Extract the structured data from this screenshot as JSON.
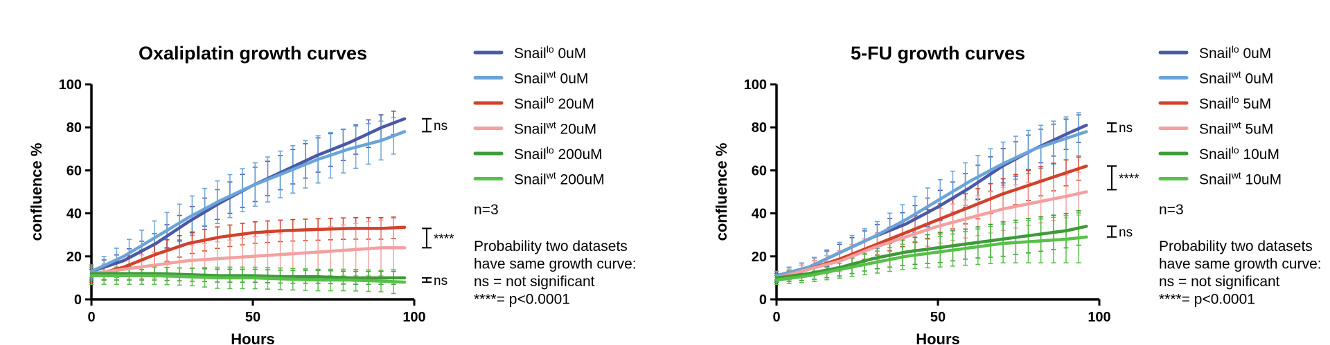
{
  "chart_data": [
    {
      "type": "line",
      "title": "Oxaliplatin growth curves",
      "xlabel": "Hours",
      "ylabel": "confluence %",
      "xlim": [
        0,
        100
      ],
      "ylim": [
        0,
        100
      ],
      "xticks": [
        "0",
        "50",
        "100"
      ],
      "yticks": [
        "0",
        "20",
        "40",
        "60",
        "80",
        "100"
      ],
      "grid": false,
      "legend_position": "right",
      "series": [
        {
          "base": "Snail",
          "sup": "lo",
          "suffix": " 0uM",
          "color": "#4B58A6",
          "x": [
            0,
            10,
            20,
            30,
            40,
            50,
            60,
            70,
            80,
            90,
            97
          ],
          "y": [
            13,
            18,
            26,
            36,
            45,
            53,
            60,
            67,
            73,
            80,
            84
          ],
          "err": [
            3,
            4,
            5,
            6,
            7,
            8,
            8,
            8,
            7,
            6,
            5
          ]
        },
        {
          "base": "Snail",
          "sup": "wt",
          "suffix": " 0uM",
          "color": "#6AA4D8",
          "x": [
            0,
            10,
            20,
            30,
            40,
            50,
            60,
            70,
            80,
            90,
            97
          ],
          "y": [
            13,
            20,
            29,
            38,
            46,
            53,
            59,
            65,
            70,
            74,
            78
          ],
          "err": [
            3,
            6,
            8,
            9,
            10,
            10,
            11,
            11,
            10,
            9,
            8
          ]
        },
        {
          "base": "Snail",
          "sup": "lo",
          "suffix": " 20uM",
          "color": "#D0422B",
          "x": [
            0,
            10,
            20,
            30,
            40,
            50,
            60,
            70,
            80,
            90,
            97
          ],
          "y": [
            11,
            15,
            21,
            26,
            29,
            31,
            32,
            32.5,
            33,
            33,
            33.5
          ],
          "err": [
            3,
            4,
            5,
            5,
            5,
            5,
            5,
            5,
            5,
            5,
            5
          ]
        },
        {
          "base": "Snail",
          "sup": "wt",
          "suffix": " 20uM",
          "color": "#F4A0A0",
          "x": [
            0,
            10,
            20,
            30,
            40,
            50,
            60,
            70,
            80,
            90,
            97
          ],
          "y": [
            12,
            14,
            16,
            18,
            19,
            20,
            21,
            22,
            23,
            24,
            24
          ],
          "err": [
            3,
            5,
            6,
            7,
            8,
            9,
            10,
            11,
            12,
            13,
            14
          ]
        },
        {
          "base": "Snail",
          "sup": "lo",
          "suffix": " 200uM",
          "color": "#3E9A3A",
          "x": [
            0,
            10,
            20,
            30,
            40,
            50,
            60,
            70,
            80,
            90,
            97
          ],
          "y": [
            12,
            12,
            12,
            11.5,
            11,
            11,
            10.5,
            10.5,
            10,
            10,
            10
          ],
          "err": [
            3,
            3,
            3,
            3,
            3,
            3,
            3,
            3,
            3,
            3,
            3
          ]
        },
        {
          "base": "Snail",
          "sup": "wt",
          "suffix": " 200uM",
          "color": "#58C04A",
          "x": [
            0,
            10,
            20,
            30,
            40,
            50,
            60,
            70,
            80,
            90,
            97
          ],
          "y": [
            11,
            11,
            11,
            10.5,
            10,
            10,
            9.5,
            9,
            9,
            8.5,
            8
          ],
          "err": [
            4,
            4,
            4,
            4,
            5,
            5,
            5,
            5,
            5,
            5,
            6
          ]
        }
      ],
      "significance": [
        {
          "label": "ns",
          "y1": 78,
          "y2": 84
        },
        {
          "label": "****",
          "y1": 24,
          "y2": 33
        },
        {
          "label": "ns",
          "y1": 8,
          "y2": 10
        }
      ],
      "notes": [
        "n=3",
        "Probability two datasets",
        "have same growth curve:",
        "ns = not significant",
        "****= p<0.0001"
      ]
    },
    {
      "type": "line",
      "title": "5-FU growth curves",
      "xlabel": "Hours",
      "ylabel": "confluence %",
      "xlim": [
        0,
        100
      ],
      "ylim": [
        0,
        100
      ],
      "xticks": [
        "0",
        "50",
        "100"
      ],
      "yticks": [
        "0",
        "20",
        "40",
        "60",
        "80",
        "100"
      ],
      "grid": false,
      "legend_position": "right",
      "series": [
        {
          "base": "Snail",
          "sup": "lo",
          "suffix": " 0uM",
          "color": "#4B58A6",
          "x": [
            0,
            10,
            20,
            30,
            40,
            50,
            60,
            70,
            80,
            90,
            96
          ],
          "y": [
            11,
            15,
            22,
            29,
            35,
            43,
            52,
            62,
            70,
            77,
            81
          ],
          "err": [
            2,
            3,
            4,
            5,
            6,
            7,
            8,
            8,
            8,
            7,
            6
          ]
        },
        {
          "base": "Snail",
          "sup": "wt",
          "suffix": " 0uM",
          "color": "#6AA4D8",
          "x": [
            0,
            10,
            20,
            30,
            40,
            50,
            60,
            70,
            80,
            90,
            96
          ],
          "y": [
            11,
            15,
            22,
            29,
            37,
            46,
            55,
            63,
            70,
            75,
            78
          ],
          "err": [
            2,
            3,
            5,
            6,
            8,
            9,
            10,
            10,
            10,
            10,
            10
          ]
        },
        {
          "base": "Snail",
          "sup": "lo",
          "suffix": " 5uM",
          "color": "#D0422B",
          "x": [
            0,
            10,
            20,
            30,
            40,
            50,
            60,
            70,
            80,
            90,
            96
          ],
          "y": [
            10,
            14,
            19,
            25,
            31,
            37,
            43,
            49,
            54,
            59,
            62
          ],
          "err": [
            2,
            3,
            4,
            5,
            6,
            7,
            7,
            7,
            7,
            6,
            5
          ]
        },
        {
          "base": "Snail",
          "sup": "wt",
          "suffix": "  5uM",
          "color": "#F4A0A0",
          "x": [
            0,
            10,
            20,
            30,
            40,
            50,
            60,
            70,
            80,
            90,
            96
          ],
          "y": [
            10,
            14,
            18,
            24,
            29,
            34,
            38,
            42,
            45,
            48,
            50
          ],
          "err": [
            2,
            3,
            5,
            6,
            7,
            8,
            9,
            10,
            10,
            10,
            10
          ]
        },
        {
          "base": "Snail",
          "sup": "lo",
          "suffix": " 10uM",
          "color": "#3E9A3A",
          "x": [
            0,
            10,
            20,
            30,
            40,
            50,
            60,
            70,
            80,
            90,
            96
          ],
          "y": [
            10,
            12,
            15,
            19,
            22,
            24,
            26,
            28,
            30,
            32,
            34
          ],
          "err": [
            2,
            3,
            4,
            5,
            6,
            7,
            7,
            8,
            8,
            8,
            8
          ]
        },
        {
          "base": "Snail",
          "sup": "wt",
          "suffix": " 10uM",
          "color": "#58C04A",
          "x": [
            0,
            10,
            20,
            30,
            40,
            50,
            60,
            70,
            80,
            90,
            96
          ],
          "y": [
            9,
            11,
            14,
            17,
            20,
            22,
            24,
            26,
            27,
            28,
            29
          ],
          "err": [
            2,
            3,
            4,
            5,
            6,
            7,
            8,
            9,
            10,
            11,
            12
          ]
        }
      ],
      "significance": [
        {
          "label": "ns",
          "y1": 78,
          "y2": 82
        },
        {
          "label": "****",
          "y1": 51,
          "y2": 62
        },
        {
          "label": "ns",
          "y1": 29,
          "y2": 34
        }
      ],
      "notes": [
        "n=3",
        "Probability two datasets",
        "have same growth curve:",
        "ns = not significant",
        "****= p<0.0001"
      ]
    }
  ]
}
